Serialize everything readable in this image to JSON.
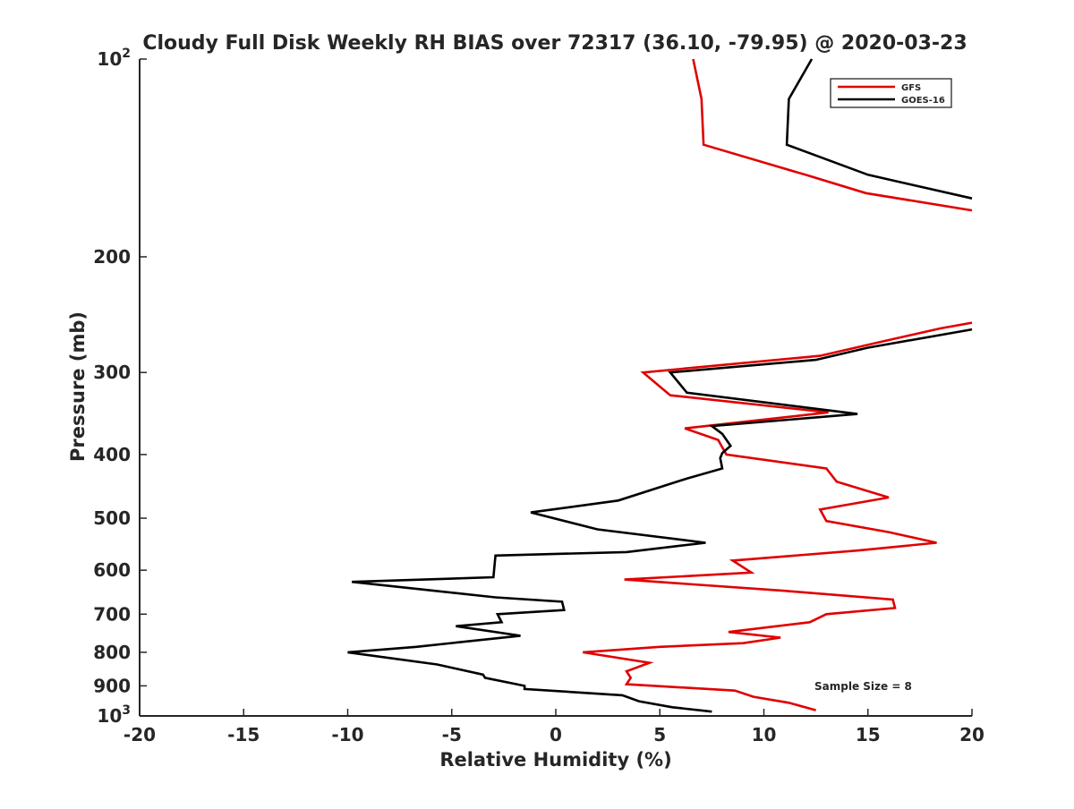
{
  "chart_data": {
    "type": "line",
    "title": "Cloudy Full Disk Weekly RH BIAS over 72317 (36.10, -79.95) @ 2020-03-23",
    "xlabel": "Relative Humidity (%)",
    "ylabel": "Pressure (mb)",
    "xlim": [
      -20,
      20
    ],
    "ylim": [
      100,
      1000
    ],
    "y_scale": "log",
    "y_reversed": true,
    "x_ticks": [
      -20,
      -15,
      -10,
      -5,
      0,
      5,
      10,
      15,
      20
    ],
    "x_tick_labels": [
      "-20",
      "-15",
      "-10",
      "-5",
      "0",
      "5",
      "10",
      "15",
      "20"
    ],
    "y_ticks": [
      100,
      200,
      300,
      400,
      500,
      600,
      700,
      800,
      900,
      1000
    ],
    "y_tick_labels": [
      {
        "base": "10",
        "exp": "2"
      },
      {
        "base": "200",
        "exp": ""
      },
      {
        "base": "300",
        "exp": ""
      },
      {
        "base": "400",
        "exp": ""
      },
      {
        "base": "500",
        "exp": ""
      },
      {
        "base": "600",
        "exp": ""
      },
      {
        "base": "700",
        "exp": ""
      },
      {
        "base": "800",
        "exp": ""
      },
      {
        "base": "900",
        "exp": ""
      },
      {
        "base": "10",
        "exp": "3"
      }
    ],
    "grid": false,
    "legend_position": "top-right",
    "annotation": "Sample Size = 8",
    "series": [
      {
        "name": "GFS",
        "color": "#e00000",
        "segments": [
          [
            [
              6.6,
              100
            ],
            [
              7.0,
              115
            ],
            [
              7.1,
              135
            ],
            [
              12.0,
              150
            ],
            [
              14.9,
              160
            ],
            [
              20.0,
              170
            ]
          ],
          [
            [
              20.0,
              252
            ],
            [
              18.5,
              257
            ],
            [
              15.5,
              270
            ],
            [
              12.7,
              283
            ],
            [
              4.2,
              300
            ],
            [
              5.5,
              325
            ],
            [
              13.1,
              345
            ],
            [
              6.2,
              365
            ],
            [
              7.8,
              380
            ],
            [
              8.1,
              395
            ],
            [
              8.2,
              400
            ],
            [
              13.0,
              420
            ],
            [
              13.5,
              440
            ],
            [
              16.0,
              465
            ],
            [
              12.7,
              485
            ],
            [
              13.0,
              505
            ],
            [
              16.0,
              525
            ],
            [
              18.3,
              545
            ],
            [
              14.5,
              560
            ],
            [
              8.5,
              580
            ],
            [
              9.4,
              605
            ],
            [
              3.3,
              620
            ],
            [
              11.0,
              645
            ],
            [
              16.2,
              665
            ],
            [
              16.3,
              685
            ],
            [
              13.0,
              700
            ],
            [
              12.2,
              720
            ],
            [
              8.3,
              745
            ],
            [
              10.8,
              760
            ],
            [
              9.0,
              775
            ],
            [
              5.0,
              785
            ],
            [
              1.3,
              800
            ],
            [
              4.5,
              830
            ],
            [
              3.4,
              855
            ],
            [
              3.6,
              875
            ],
            [
              3.4,
              895
            ],
            [
              8.6,
              915
            ],
            [
              9.5,
              935
            ],
            [
              11.2,
              955
            ],
            [
              12.5,
              980
            ]
          ]
        ]
      },
      {
        "name": "GOES-16",
        "color": "#000000",
        "segments": [
          [
            [
              12.3,
              100
            ],
            [
              11.2,
              115
            ],
            [
              11.1,
              135
            ],
            [
              15.0,
              150
            ],
            [
              20.0,
              163
            ]
          ],
          [
            [
              20.0,
              258
            ],
            [
              15.0,
              275
            ],
            [
              12.5,
              287
            ],
            [
              5.5,
              300
            ],
            [
              6.3,
              322
            ],
            [
              14.5,
              347
            ],
            [
              7.5,
              362
            ],
            [
              8.0,
              372
            ],
            [
              8.4,
              388
            ],
            [
              8.0,
              398
            ],
            [
              7.9,
              405
            ],
            [
              8.0,
              420
            ],
            [
              6.3,
              435
            ],
            [
              3.0,
              470
            ],
            [
              -1.2,
              490
            ],
            [
              2.0,
              520
            ],
            [
              7.2,
              545
            ],
            [
              3.4,
              563
            ],
            [
              -2.9,
              570
            ],
            [
              -3.0,
              615
            ],
            [
              -9.8,
              625
            ],
            [
              -2.9,
              660
            ],
            [
              0.3,
              670
            ],
            [
              0.4,
              690
            ],
            [
              -2.8,
              700
            ],
            [
              -2.6,
              720
            ],
            [
              -4.8,
              730
            ],
            [
              -1.7,
              755
            ],
            [
              -6.7,
              785
            ],
            [
              -10.0,
              800
            ],
            [
              -5.7,
              835
            ],
            [
              -3.5,
              865
            ],
            [
              -3.4,
              875
            ],
            [
              -1.5,
              900
            ],
            [
              -1.5,
              910
            ],
            [
              3.2,
              930
            ],
            [
              4.0,
              950
            ],
            [
              5.6,
              970
            ],
            [
              7.5,
              985
            ]
          ]
        ]
      }
    ]
  }
}
